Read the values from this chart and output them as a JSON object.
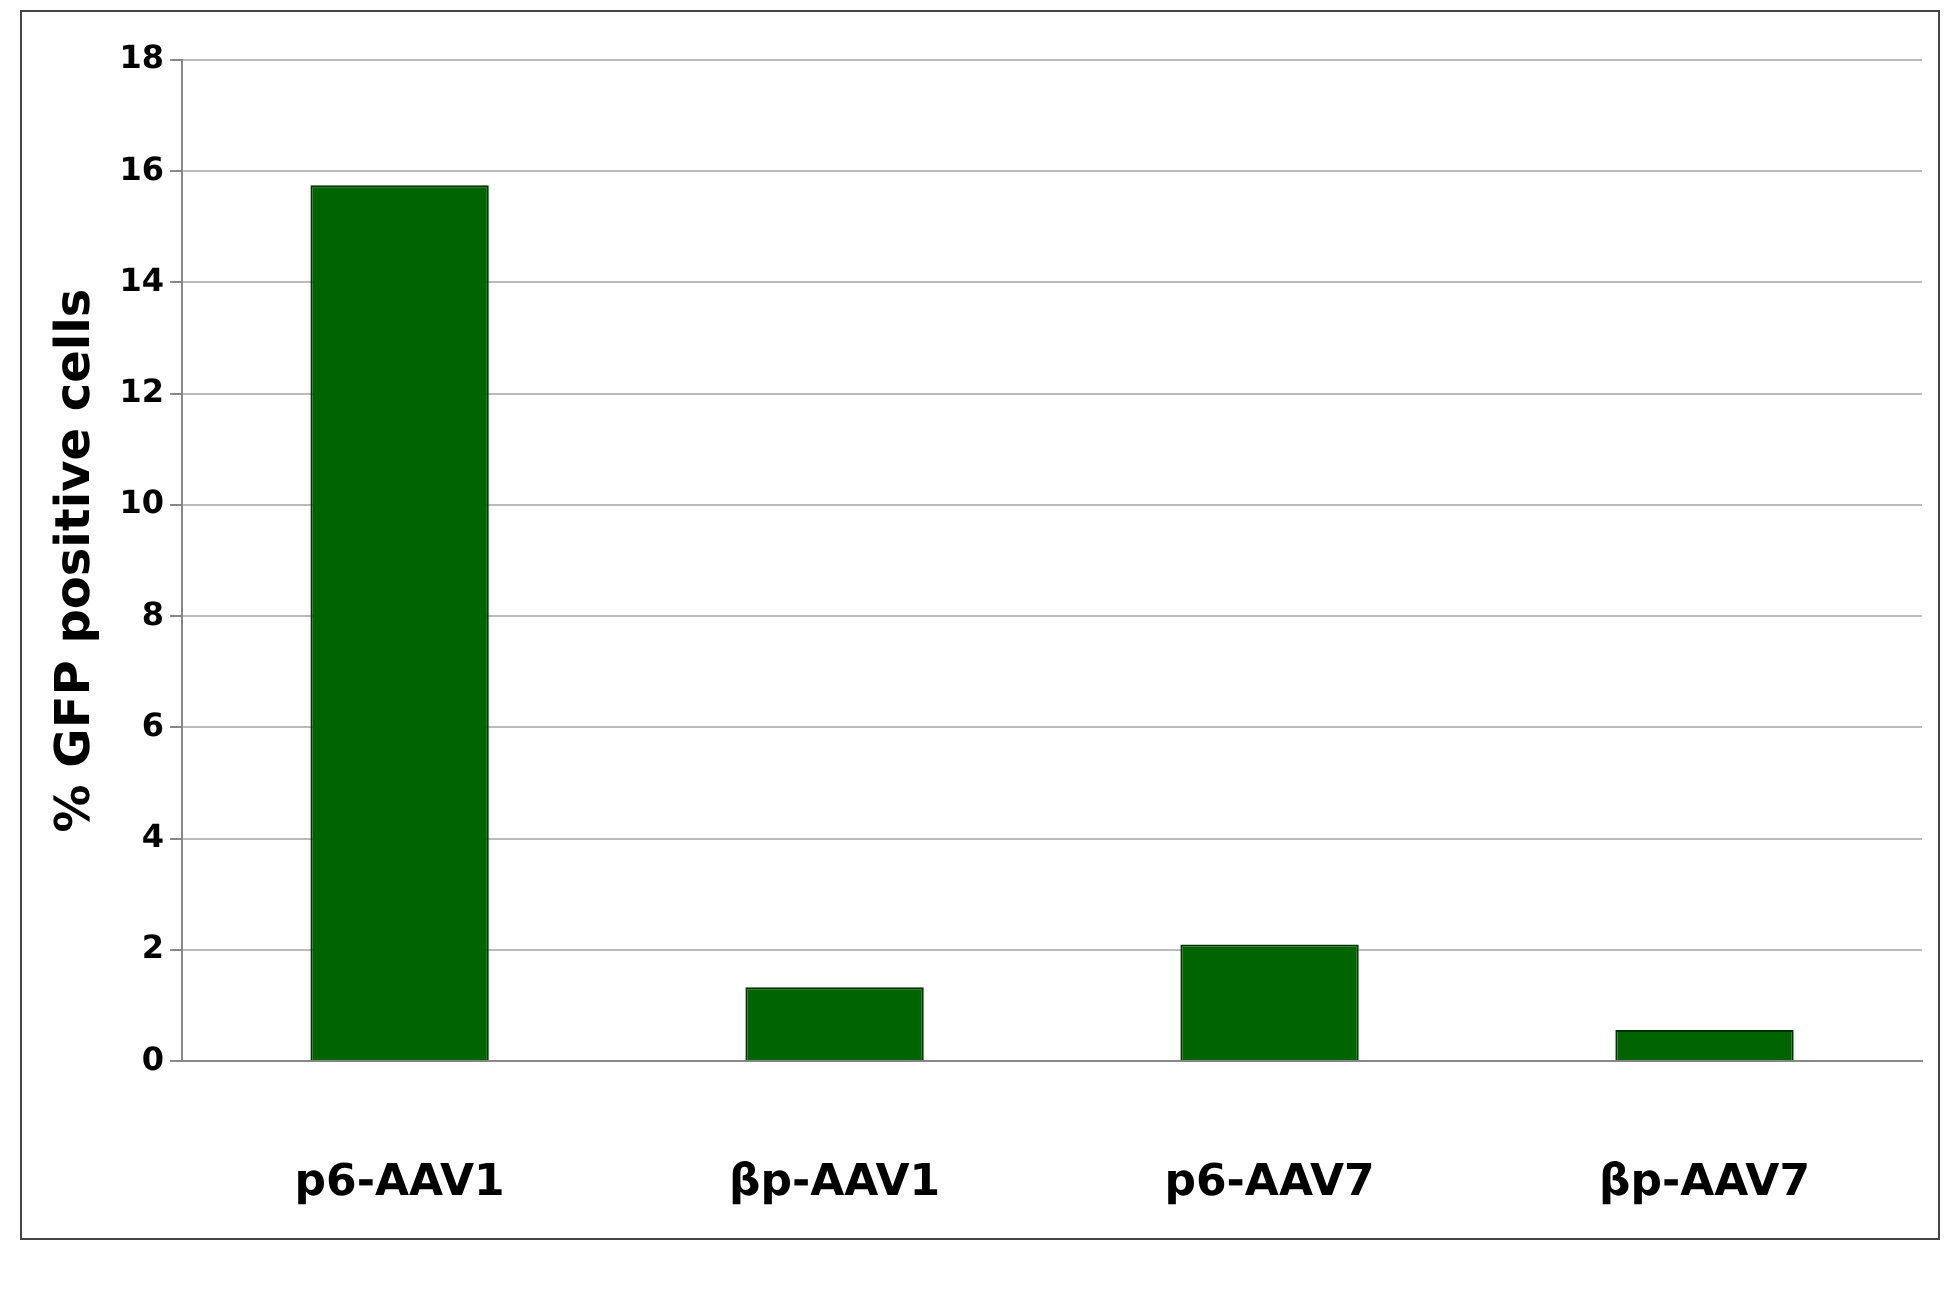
{
  "chart_data": {
    "type": "bar",
    "ylabel": "% GFP positive cells",
    "categories": [
      "p6-AAV1",
      "βp-AAV1",
      "p6-AAV7",
      "βp-AAV7"
    ],
    "values": [
      15.75,
      1.33,
      2.1,
      0.56
    ],
    "color": "#006400",
    "ylim": [
      0,
      18
    ],
    "yticks": [
      0,
      2,
      4,
      6,
      8,
      10,
      12,
      14,
      16,
      18
    ],
    "grid": "y",
    "legend": false
  }
}
